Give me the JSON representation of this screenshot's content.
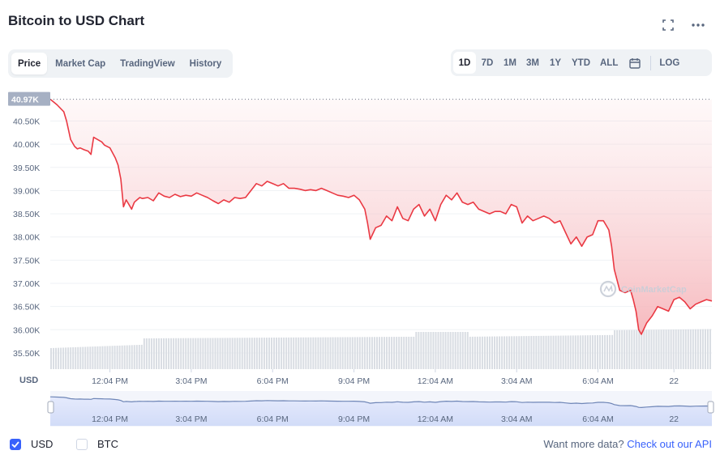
{
  "header": {
    "title": "Bitcoin to USD Chart",
    "expand_icon": "expand-icon",
    "more_icon": "more-icon"
  },
  "tabs": [
    {
      "label": "Price",
      "active": true
    },
    {
      "label": "Market Cap",
      "active": false
    },
    {
      "label": "TradingView",
      "active": false
    },
    {
      "label": "History",
      "active": false
    }
  ],
  "ranges": [
    {
      "label": "1D",
      "active": true
    },
    {
      "label": "7D",
      "active": false
    },
    {
      "label": "1M",
      "active": false
    },
    {
      "label": "3M",
      "active": false
    },
    {
      "label": "1Y",
      "active": false
    },
    {
      "label": "YTD",
      "active": false
    },
    {
      "label": "ALL",
      "active": false
    }
  ],
  "calendar_icon": "calendar-icon",
  "log_label": "LOG",
  "colors": {
    "line": "#ea3943",
    "fill": "#f6b6bb",
    "volume": "#d9dde3",
    "navigator_fill": "#dfe6fb",
    "navigator_line": "#6f86b7",
    "accent": "#3861fb",
    "current_label_bg": "#a6b0c3"
  },
  "chart_data": {
    "type": "area",
    "title": "Bitcoin to USD Chart",
    "ylabel": "USD",
    "current_price_label": "40.97K",
    "x_tick_labels": [
      "12:04 PM",
      "3:04 PM",
      "6:04 PM",
      "9:04 PM",
      "12:04 AM",
      "3:04 AM",
      "6:04 AM",
      "22"
    ],
    "y_tick_labels": [
      "40.50K",
      "40.00K",
      "39.50K",
      "39.00K",
      "38.50K",
      "38.00K",
      "37.50K",
      "37.00K",
      "36.50K",
      "36.00K",
      "35.50K"
    ],
    "y_ticks": [
      40500,
      40000,
      39500,
      39000,
      38500,
      38000,
      37500,
      37000,
      36500,
      36000,
      35500
    ],
    "ylim": [
      35150,
      41050
    ],
    "xlim": [
      0,
      24.4
    ],
    "x_ticks": [
      2.2,
      5.2,
      8.2,
      11.2,
      14.2,
      17.2,
      20.2,
      23.0
    ],
    "grid": true,
    "series": [
      {
        "x": [
          0,
          0.25,
          0.5,
          0.6,
          0.75,
          0.9,
          1.0,
          1.1,
          1.25,
          1.4,
          1.5,
          1.6,
          1.75,
          1.9,
          2.0,
          2.2,
          2.4,
          2.5,
          2.6,
          2.7,
          2.8,
          2.9,
          3.0,
          3.1,
          3.2,
          3.3,
          3.4,
          3.6,
          3.8,
          4.0,
          4.2,
          4.4,
          4.6,
          4.8,
          5.0,
          5.2,
          5.4,
          5.6,
          5.8,
          6.0,
          6.2,
          6.4,
          6.6,
          6.8,
          7.0,
          7.2,
          7.4,
          7.6,
          7.8,
          8.0,
          8.2,
          8.4,
          8.6,
          8.8,
          9.0,
          9.2,
          9.4,
          9.6,
          9.8,
          10.0,
          10.2,
          10.4,
          10.6,
          10.8,
          11.0,
          11.2,
          11.4,
          11.6,
          11.7,
          11.8,
          12.0,
          12.2,
          12.4,
          12.6,
          12.8,
          13.0,
          13.2,
          13.4,
          13.6,
          13.8,
          14.0,
          14.2,
          14.4,
          14.6,
          14.8,
          15.0,
          15.2,
          15.4,
          15.6,
          15.8,
          16.0,
          16.2,
          16.4,
          16.6,
          16.8,
          17.0,
          17.2,
          17.4,
          17.6,
          17.8,
          18.0,
          18.2,
          18.4,
          18.6,
          18.8,
          19.0,
          19.2,
          19.4,
          19.6,
          19.8,
          20.0,
          20.2,
          20.4,
          20.5,
          20.6,
          20.7,
          20.8,
          21.0,
          21.2,
          21.4,
          21.5,
          21.6,
          21.7,
          21.8,
          22.0,
          22.2,
          22.4,
          22.6,
          22.8,
          23.0,
          23.2,
          23.4,
          23.6,
          23.8,
          24.0,
          24.2,
          24.4
        ],
        "y": [
          40970,
          40850,
          40700,
          40500,
          40100,
          39950,
          39900,
          39920,
          39880,
          39850,
          39780,
          40150,
          40100,
          40050,
          39980,
          39920,
          39700,
          39550,
          39250,
          38650,
          38800,
          38700,
          38600,
          38750,
          38800,
          38850,
          38830,
          38850,
          38780,
          38950,
          38880,
          38850,
          38920,
          38870,
          38900,
          38880,
          38950,
          38900,
          38850,
          38780,
          38720,
          38800,
          38750,
          38850,
          38830,
          38850,
          39000,
          39150,
          39100,
          39200,
          39150,
          39100,
          39150,
          39050,
          39050,
          39030,
          39000,
          39020,
          39000,
          39050,
          39000,
          38950,
          38900,
          38880,
          38850,
          38900,
          38800,
          38600,
          38300,
          37950,
          38200,
          38250,
          38450,
          38350,
          38650,
          38400,
          38350,
          38600,
          38700,
          38450,
          38600,
          38350,
          38700,
          38900,
          38800,
          38950,
          38750,
          38700,
          38750,
          38600,
          38550,
          38500,
          38550,
          38550,
          38500,
          38700,
          38650,
          38300,
          38450,
          38350,
          38400,
          38450,
          38400,
          38300,
          38350,
          38100,
          37850,
          38000,
          37800,
          38000,
          38050,
          38350,
          38350,
          38250,
          38150,
          37800,
          37300,
          36850,
          36800,
          36850,
          36650,
          36400,
          36000,
          35900,
          36150,
          36300,
          36500,
          36450,
          36400,
          36650,
          36700,
          36600,
          36450,
          36550,
          36600,
          36650,
          36620
        ]
      }
    ]
  },
  "navigator": {
    "x_tick_labels": [
      "12:04 PM",
      "3:04 PM",
      "6:04 PM",
      "9:04 PM",
      "12:04 AM",
      "3:04 AM",
      "6:04 AM",
      "22"
    ]
  },
  "watermark": {
    "text": "CoinMarketCap",
    "icon": "coinmarketcap-logo-icon"
  },
  "legend": [
    {
      "label": "USD",
      "checked": true
    },
    {
      "label": "BTC",
      "checked": false
    }
  ],
  "footer": {
    "api_text": "Want more data?",
    "api_link": "Check out our API"
  }
}
